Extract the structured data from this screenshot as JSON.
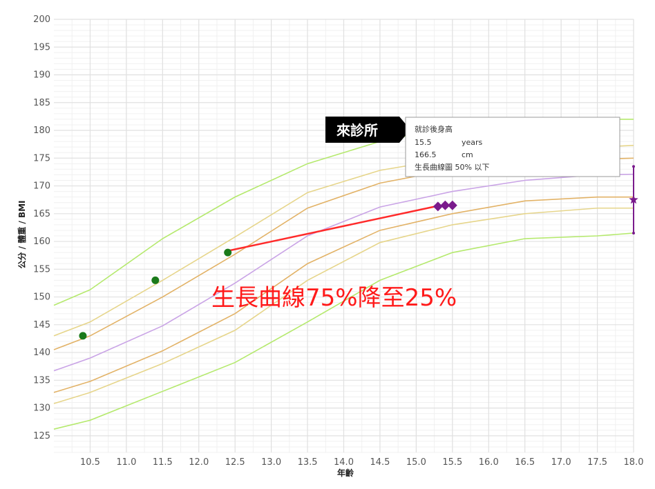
{
  "chart_data": {
    "type": "line",
    "title": "",
    "xlabel": "年齡",
    "ylabel": "公分 / 體重 / BMI",
    "xlim": [
      10.0,
      18.0
    ],
    "ylim": [
      122,
      200
    ],
    "x_ticks": [
      "10.5",
      "11.0",
      "11.5",
      "12.0",
      "12.5",
      "13.0",
      "13.5",
      "14.0",
      "14.5",
      "15.0",
      "15.5",
      "16.0",
      "16.5",
      "17.0",
      "17.5",
      "18.0"
    ],
    "y_ticks": [
      "125",
      "130",
      "135",
      "140",
      "145",
      "150",
      "155",
      "160",
      "165",
      "170",
      "175",
      "180",
      "185",
      "190",
      "195",
      "200"
    ],
    "grid": true,
    "x": [
      10.0,
      10.5,
      11.5,
      12.5,
      13.5,
      14.5,
      15.5,
      16.5,
      17.5,
      18.0
    ],
    "percentile_series": [
      {
        "color": "#b4e96c",
        "values": [
          148.5,
          151.3,
          160.5,
          168.0,
          174.0,
          178.0,
          180.7,
          181.8,
          182.0,
          182.0
        ]
      },
      {
        "color": "#e6d58a",
        "values": [
          143.0,
          145.5,
          153.0,
          160.8,
          168.8,
          172.8,
          175.0,
          176.5,
          177.0,
          177.3
        ]
      },
      {
        "color": "#e2b266",
        "values": [
          140.5,
          143.0,
          150.0,
          157.7,
          166.0,
          170.5,
          173.0,
          174.3,
          174.8,
          175.0
        ]
      },
      {
        "color": "#c9a3e6",
        "values": [
          136.7,
          139.0,
          144.8,
          152.5,
          161.0,
          166.2,
          169.0,
          171.0,
          172.0,
          172.1
        ]
      },
      {
        "color": "#e2b266",
        "values": [
          132.8,
          134.8,
          140.3,
          147.0,
          156.0,
          162.0,
          165.0,
          167.3,
          168.0,
          168.0
        ]
      },
      {
        "color": "#e6d58a",
        "values": [
          130.8,
          132.8,
          138.0,
          144.0,
          153.0,
          159.8,
          163.0,
          165.0,
          166.0,
          166.0
        ]
      },
      {
        "color": "#b4e96c",
        "values": [
          126.2,
          127.8,
          133.0,
          138.2,
          145.5,
          153.0,
          158.0,
          160.5,
          161.0,
          161.5
        ]
      }
    ],
    "measurements": [
      {
        "x": 10.4,
        "y": 143.0
      },
      {
        "x": 11.4,
        "y": 153.0
      },
      {
        "x": 12.4,
        "y": 158.0
      }
    ],
    "trend_line": {
      "color": "#ff2a2a",
      "x": [
        12.4,
        15.3
      ],
      "y": [
        158.3,
        166.4
      ]
    },
    "recent_points": [
      {
        "x": 15.3,
        "y": 166.3
      },
      {
        "x": 15.4,
        "y": 166.5
      },
      {
        "x": 15.5,
        "y": 166.5
      }
    ],
    "target": {
      "x": 18.0,
      "y": 167.5,
      "low": 161.5,
      "high": 173.5
    },
    "colors": {
      "measurement": "#1a7a1a",
      "recent": "#7a1a8c",
      "target": "#7a1a8c",
      "grid": "#e0e0e0",
      "annotation": "#ff1a1a"
    }
  },
  "visit_label": "來診所",
  "tooltip": {
    "title": "就診後身高",
    "age_value": "15.5",
    "age_unit": "years",
    "height_value": "166.5",
    "height_unit": "cm",
    "percentile": "生長曲線圖 50% 以下"
  },
  "annotation": "生長曲線75%降至25%"
}
